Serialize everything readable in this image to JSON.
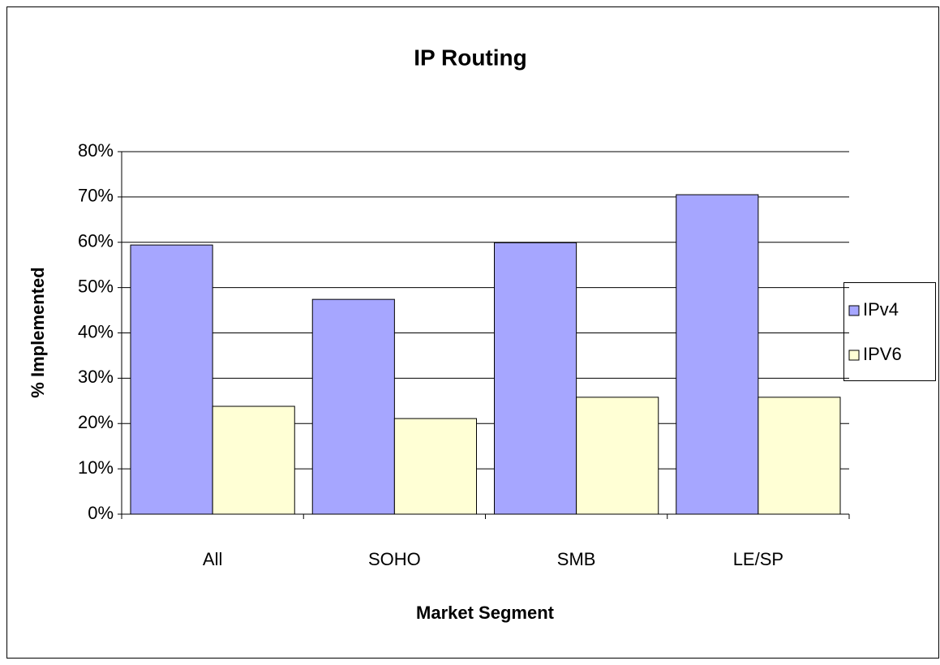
{
  "chart_data": {
    "type": "bar",
    "title": "IP Routing",
    "x_label": "Market Segment",
    "y_label": "% Implemented",
    "categories": [
      "All",
      "SOHO",
      "SMB",
      "LE/SP"
    ],
    "series": [
      {
        "name": "IPv4",
        "color": "#a6a6ff",
        "values": [
          59.4,
          47.4,
          59.9,
          70.5
        ]
      },
      {
        "name": "IPV6",
        "color": "#ffffd5",
        "values": [
          23.8,
          21.1,
          25.8,
          25.8
        ]
      }
    ],
    "ylim": [
      0,
      80
    ],
    "yticks": [
      {
        "value": 0,
        "label": "0%"
      },
      {
        "value": 10,
        "label": "10%"
      },
      {
        "value": 20,
        "label": "20%"
      },
      {
        "value": 30,
        "label": "30%"
      },
      {
        "value": 40,
        "label": "40%"
      },
      {
        "value": 50,
        "label": "50%"
      },
      {
        "value": 60,
        "label": "60%"
      },
      {
        "value": 70,
        "label": "70%"
      },
      {
        "value": 80,
        "label": "80%"
      }
    ],
    "grid": true,
    "legend": "right"
  }
}
